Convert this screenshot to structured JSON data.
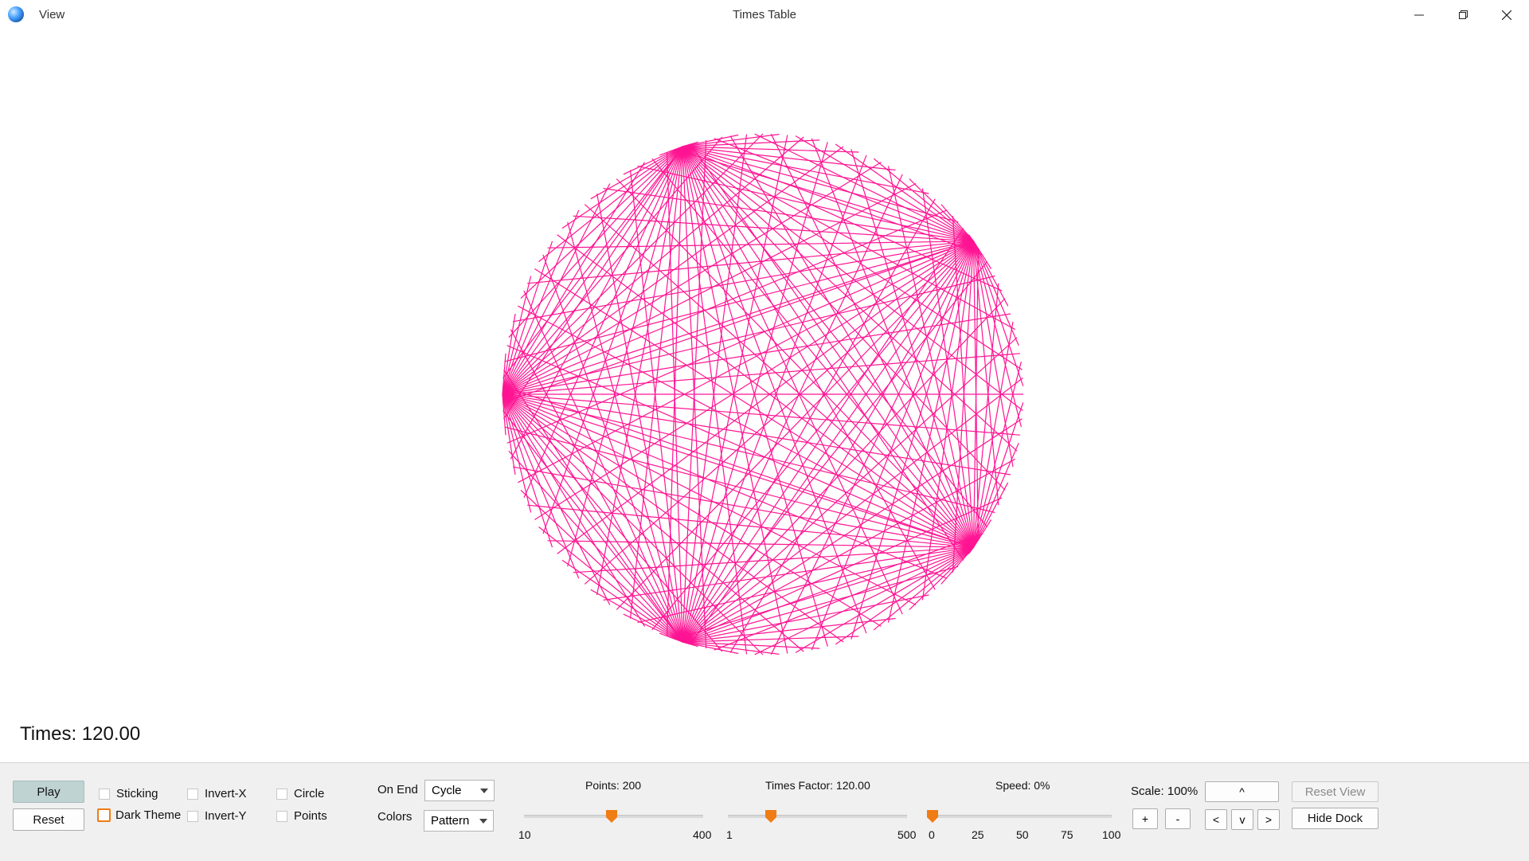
{
  "window": {
    "menu_view": "View",
    "title": "Times Table"
  },
  "canvas": {
    "times_label": "Times: 120.00",
    "points": 200,
    "times_factor": 120,
    "line_color": "#ff1493"
  },
  "dock": {
    "play_label": "Play",
    "reset_label": "Reset",
    "checkboxes": {
      "sticking": "Sticking",
      "dark_theme": "Dark Theme",
      "invert_x": "Invert-X",
      "invert_y": "Invert-Y",
      "circle": "Circle",
      "points": "Points"
    },
    "on_end_label": "On End",
    "on_end_value": "Cycle",
    "colors_label": "Colors",
    "colors_value": "Pattern",
    "points_slider": {
      "label": "Points: 200",
      "min": "10",
      "max": "400",
      "value": 200,
      "min_num": 10,
      "max_num": 400
    },
    "times_slider": {
      "label": "Times Factor: 120.00",
      "min": "1",
      "max": "500",
      "value": 120,
      "min_num": 1,
      "max_num": 500
    },
    "speed_slider": {
      "label": "Speed: 0%",
      "ticks": [
        "0",
        "25",
        "50",
        "75",
        "100"
      ],
      "value": 0
    },
    "scale_label": "Scale: 100%",
    "plus_label": "+",
    "minus_label": "-",
    "up_label": "^",
    "left_label": "<",
    "down_label": "v",
    "right_label": ">",
    "reset_view_label": "Reset View",
    "hide_dock_label": "Hide Dock"
  },
  "colors": {
    "accent_orange": "#f07c14",
    "play_bg": "#bfd3d3",
    "dock_bg": "#f0f0f0"
  }
}
